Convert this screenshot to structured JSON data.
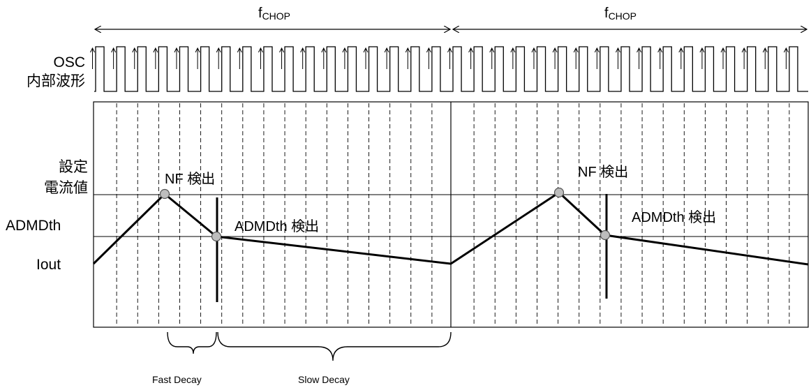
{
  "labels": {
    "fchop_main": "f",
    "fchop_sub": "CHOP",
    "osc_line1": "OSC",
    "osc_line2": "内部波形",
    "set_current_line1": "設定",
    "set_current_line2": "電流値",
    "admdth": "ADMDth",
    "iout": "Iout",
    "nf_detect": "NF 検出",
    "admdth_detect": "ADMDth 検出",
    "fast_decay": "Fast Decay",
    "slow_decay": "Slow Decay"
  },
  "periods": [
    {
      "name": "chop-period-1"
    },
    {
      "name": "chop-period-2"
    }
  ],
  "osc_pulses_per_period": 17,
  "decay_phases": [
    "Fast Decay",
    "Slow Decay"
  ]
}
